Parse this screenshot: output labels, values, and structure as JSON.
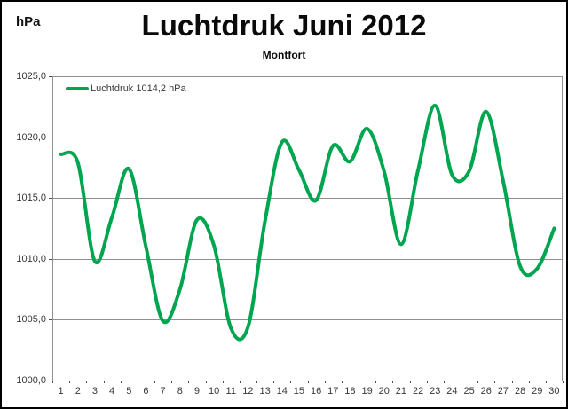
{
  "header": {
    "unit_label": "hPa",
    "title": "Luchtdruk Juni 2012",
    "subtitle": "Montfort"
  },
  "legend": {
    "label": "Luchtdruk 1014,2 hPa"
  },
  "colors": {
    "series_green": "#00A550",
    "gridline": "#8f8f8f",
    "axis": "#4d4d4d",
    "background": "#ffffff",
    "border": "#000000"
  },
  "chart_data": {
    "type": "line",
    "smooth": true,
    "title": "Luchtdruk Juni 2012",
    "subtitle": "Montfort",
    "ylabel": "hPa",
    "xlabel": "",
    "x": [
      1,
      2,
      3,
      4,
      5,
      6,
      7,
      8,
      9,
      10,
      11,
      12,
      13,
      14,
      15,
      16,
      17,
      18,
      19,
      20,
      21,
      22,
      23,
      24,
      25,
      26,
      27,
      28,
      29,
      30
    ],
    "series": [
      {
        "name": "Luchtdruk 1014,2 hPa",
        "color": "#00A550",
        "values": [
          1018.6,
          1017.9,
          1009.8,
          1013.4,
          1017.4,
          1011.0,
          1004.9,
          1007.5,
          1013.2,
          1011.1,
          1004.3,
          1004.4,
          1013.1,
          1019.6,
          1017.3,
          1014.8,
          1019.3,
          1018.0,
          1020.7,
          1017.2,
          1011.2,
          1017.3,
          1022.6,
          1016.9,
          1017.2,
          1022.1,
          1016.4,
          1009.4,
          1009.2,
          1012.5
        ]
      }
    ],
    "mean_value_shown": "1014,2",
    "ylim": [
      1000,
      1025
    ],
    "ytick_step": 5,
    "decimal_separator": ",",
    "grid": true,
    "legend_position": "top-left-inside"
  }
}
